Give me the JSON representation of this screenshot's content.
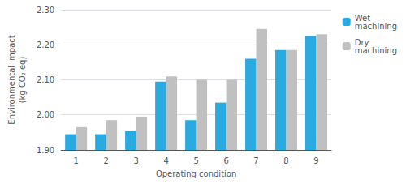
{
  "chart_data": {
    "type": "bar",
    "categories": [
      "1",
      "2",
      "3",
      "4",
      "5",
      "6",
      "7",
      "8",
      "9"
    ],
    "series": [
      {
        "name": "Wet\nmachining",
        "color": "#29ABE2",
        "values": [
          1.945,
          1.945,
          1.955,
          2.095,
          1.985,
          2.035,
          2.16,
          2.185,
          2.225
        ]
      },
      {
        "name": "Dry\nmachining",
        "color": "#C0C0C0",
        "values": [
          1.965,
          1.985,
          1.995,
          2.11,
          2.1,
          2.1,
          2.245,
          2.185,
          2.23
        ]
      }
    ],
    "xlabel": "Operating condition",
    "ylabel": "Environmental impact\n(kg CO₂ eq)",
    "ylim": [
      1.9,
      2.3
    ],
    "yticks": [
      {
        "value": 1.9,
        "label": "1.90"
      },
      {
        "value": 2.0,
        "label": "2.00"
      },
      {
        "value": 2.1,
        "label": "2.10"
      },
      {
        "value": 2.2,
        "label": "2.20"
      },
      {
        "value": 2.3,
        "label": "2.30"
      }
    ],
    "grid": true,
    "legend": "right"
  }
}
